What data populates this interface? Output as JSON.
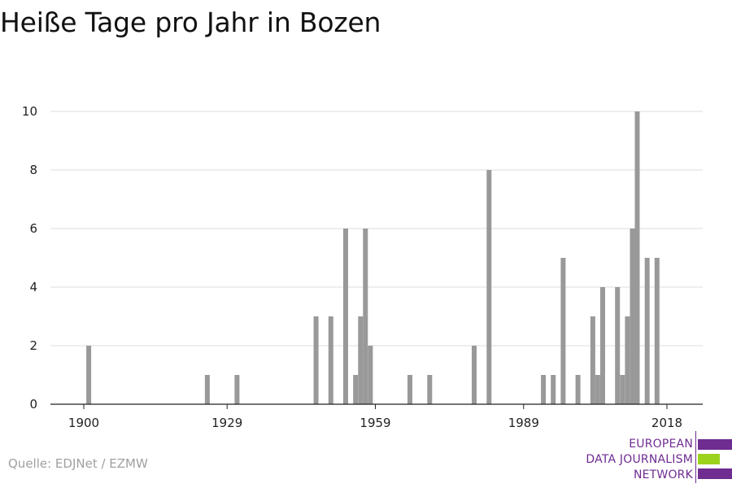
{
  "title": "Heiße Tage pro Jahr in Bozen",
  "source": "Quelle: EDJNet / EZMW",
  "logo": {
    "lines": [
      "EUROPEAN",
      "DATA JOURNALISM",
      "NETWORK"
    ],
    "colors": {
      "purple": "#6f2c91",
      "green": "#9bd21e"
    }
  },
  "chart_data": {
    "type": "bar",
    "title": "Heiße Tage pro Jahr in Bozen",
    "xlabel": "",
    "ylabel": "",
    "xlim": [
      1896,
      2022
    ],
    "ylim": [
      0,
      10
    ],
    "xticks": [
      1900,
      1929,
      1959,
      1989,
      2018
    ],
    "yticks": [
      0,
      2,
      4,
      6,
      8,
      10
    ],
    "grid": true,
    "bar_color": "#999999",
    "x": [
      1901,
      1925,
      1931,
      1947,
      1950,
      1953,
      1955,
      1956,
      1957,
      1958,
      1966,
      1970,
      1979,
      1982,
      1993,
      1995,
      1997,
      2000,
      2003,
      2004,
      2005,
      2008,
      2009,
      2010,
      2011,
      2012,
      2014,
      2016
    ],
    "values": [
      2,
      1,
      1,
      3,
      3,
      6,
      1,
      3,
      6,
      2,
      1,
      1,
      2,
      8,
      1,
      1,
      5,
      1,
      3,
      1,
      4,
      4,
      1,
      3,
      6,
      10,
      5,
      5
    ]
  }
}
